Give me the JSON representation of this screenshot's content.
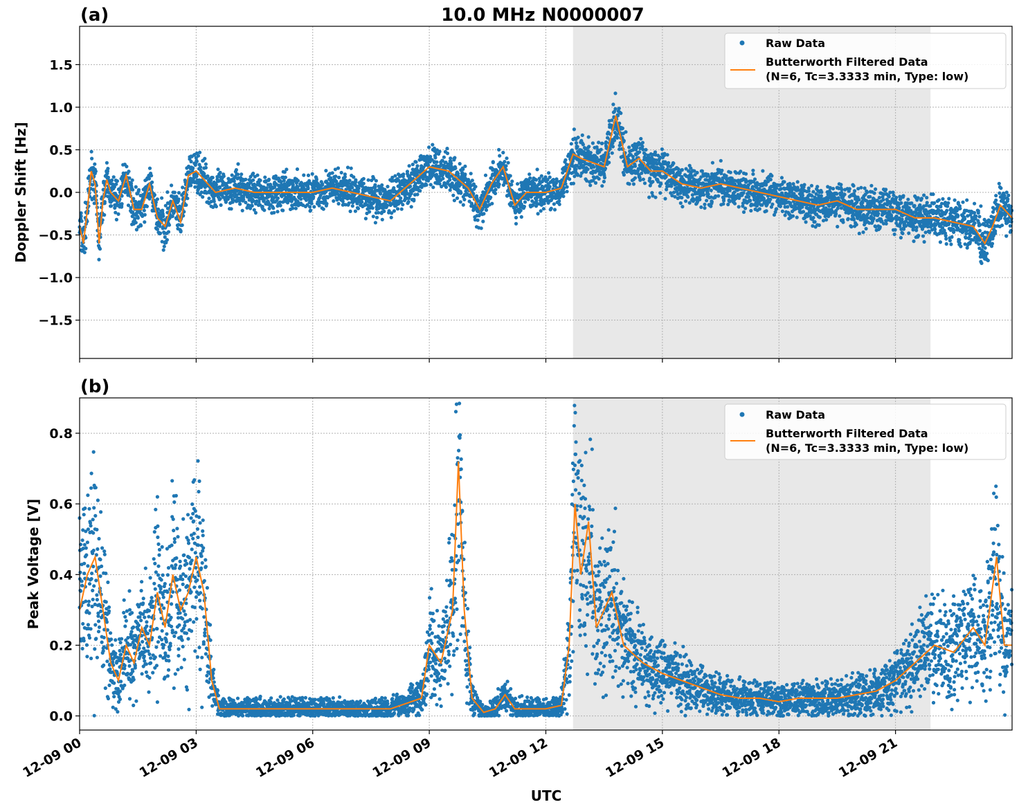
{
  "figure": {
    "title": "10.0 MHz N0000007",
    "xlabel": "UTC",
    "x_tick_labels": [
      "12-09 00",
      "12-09 03",
      "12-09 06",
      "12-09 09",
      "12-09 12",
      "12-09 15",
      "12-09 18",
      "12-09 21"
    ]
  },
  "legend": {
    "raw_label": "Raw Data",
    "filtered_label_line1": "Butterworth Filtered Data",
    "filtered_label_line2": "(N=6, Tc=3.3333 min, Type: low)"
  },
  "colors": {
    "raw": "#1f77b4",
    "filtered": "#ff7f0e",
    "shade": "#e8e8e8",
    "grid": "#b0b0b0"
  },
  "chart_data": [
    {
      "panel_label": "(a)",
      "type": "scatter",
      "ylabel": "Doppler Shift [Hz]",
      "xlim_hours": [
        0,
        24
      ],
      "ylim": [
        -1.95,
        1.95
      ],
      "y_ticks": [
        -1.5,
        -1.0,
        -0.5,
        0.0,
        0.5,
        1.0,
        1.5
      ],
      "y_tick_labels": [
        "−1.5",
        "−1.0",
        "−0.5",
        "0.0",
        "0.5",
        "1.0",
        "1.5"
      ],
      "grid": true,
      "legend_position": "top-right",
      "shaded_interval_hours": [
        12.7,
        21.9
      ],
      "series": [
        {
          "name": "Butterworth Filtered Data",
          "x_hours": [
            0,
            0.1,
            0.2,
            0.3,
            0.4,
            0.5,
            0.6,
            0.7,
            0.8,
            1.0,
            1.2,
            1.4,
            1.6,
            1.8,
            2.0,
            2.2,
            2.4,
            2.6,
            2.8,
            3.0,
            3.2,
            3.5,
            4.0,
            4.5,
            5.0,
            5.5,
            6.0,
            6.5,
            7.0,
            7.5,
            8.0,
            8.5,
            9.0,
            9.5,
            10.0,
            10.3,
            10.6,
            10.9,
            11.2,
            11.5,
            12.0,
            12.4,
            12.7,
            12.9,
            13.2,
            13.5,
            13.8,
            14.1,
            14.4,
            14.7,
            15.0,
            15.5,
            16.0,
            16.5,
            17.0,
            17.5,
            18.0,
            18.5,
            19.0,
            19.5,
            20.0,
            20.5,
            21.0,
            21.5,
            22.0,
            22.5,
            23.0,
            23.3,
            23.5,
            23.7,
            24.0
          ],
          "values": [
            -0.4,
            -0.6,
            -0.2,
            0.25,
            0.1,
            -0.6,
            -0.1,
            0.15,
            0.0,
            -0.1,
            0.2,
            -0.2,
            -0.2,
            0.1,
            -0.3,
            -0.4,
            -0.1,
            -0.35,
            0.2,
            0.25,
            0.15,
            0.0,
            0.05,
            0.0,
            0.0,
            0.0,
            0.0,
            0.05,
            0.0,
            -0.05,
            -0.1,
            0.1,
            0.3,
            0.25,
            0.05,
            -0.2,
            0.1,
            0.3,
            -0.15,
            0.0,
            0.0,
            0.05,
            0.45,
            0.4,
            0.35,
            0.3,
            0.9,
            0.3,
            0.4,
            0.25,
            0.25,
            0.1,
            0.05,
            0.1,
            0.05,
            0.0,
            -0.05,
            -0.1,
            -0.15,
            -0.1,
            -0.2,
            -0.2,
            -0.2,
            -0.3,
            -0.3,
            -0.35,
            -0.4,
            -0.6,
            -0.4,
            -0.15,
            -0.3
          ]
        }
      ]
    },
    {
      "panel_label": "(b)",
      "type": "scatter",
      "ylabel": "Peak Voltage [V]",
      "xlim_hours": [
        0,
        24
      ],
      "ylim": [
        -0.04,
        0.9
      ],
      "y_ticks": [
        0.0,
        0.2,
        0.4,
        0.6,
        0.8
      ],
      "y_tick_labels": [
        "0.0",
        "0.2",
        "0.4",
        "0.6",
        "0.8"
      ],
      "grid": true,
      "legend_position": "top-right",
      "shaded_interval_hours": [
        12.7,
        21.9
      ],
      "series": [
        {
          "name": "Butterworth Filtered Data",
          "x_hours": [
            0,
            0.1,
            0.2,
            0.4,
            0.6,
            0.8,
            1.0,
            1.2,
            1.4,
            1.6,
            1.8,
            2.0,
            2.2,
            2.4,
            2.6,
            2.8,
            3.0,
            3.2,
            3.4,
            3.6,
            4.0,
            5.0,
            6.0,
            7.0,
            8.0,
            8.8,
            9.0,
            9.3,
            9.6,
            9.75,
            9.9,
            10.1,
            10.4,
            10.7,
            10.95,
            11.2,
            11.5,
            12.0,
            12.4,
            12.6,
            12.75,
            12.9,
            13.1,
            13.3,
            13.5,
            13.7,
            14.0,
            14.5,
            15.0,
            15.5,
            16.0,
            16.5,
            17.0,
            17.5,
            18.0,
            18.5,
            19.0,
            19.5,
            20.0,
            20.5,
            21.0,
            21.5,
            22.0,
            22.5,
            23.0,
            23.3,
            23.6,
            23.8,
            24.0
          ],
          "values": [
            0.3,
            0.35,
            0.4,
            0.45,
            0.3,
            0.15,
            0.1,
            0.2,
            0.15,
            0.25,
            0.2,
            0.35,
            0.25,
            0.4,
            0.3,
            0.35,
            0.45,
            0.35,
            0.1,
            0.02,
            0.02,
            0.02,
            0.02,
            0.02,
            0.02,
            0.05,
            0.2,
            0.15,
            0.3,
            0.72,
            0.3,
            0.05,
            0.01,
            0.02,
            0.06,
            0.02,
            0.02,
            0.02,
            0.03,
            0.2,
            0.6,
            0.4,
            0.55,
            0.25,
            0.3,
            0.35,
            0.2,
            0.15,
            0.12,
            0.1,
            0.08,
            0.06,
            0.05,
            0.05,
            0.04,
            0.05,
            0.05,
            0.05,
            0.06,
            0.07,
            0.1,
            0.15,
            0.2,
            0.18,
            0.25,
            0.2,
            0.45,
            0.2,
            0.2
          ]
        }
      ]
    }
  ]
}
